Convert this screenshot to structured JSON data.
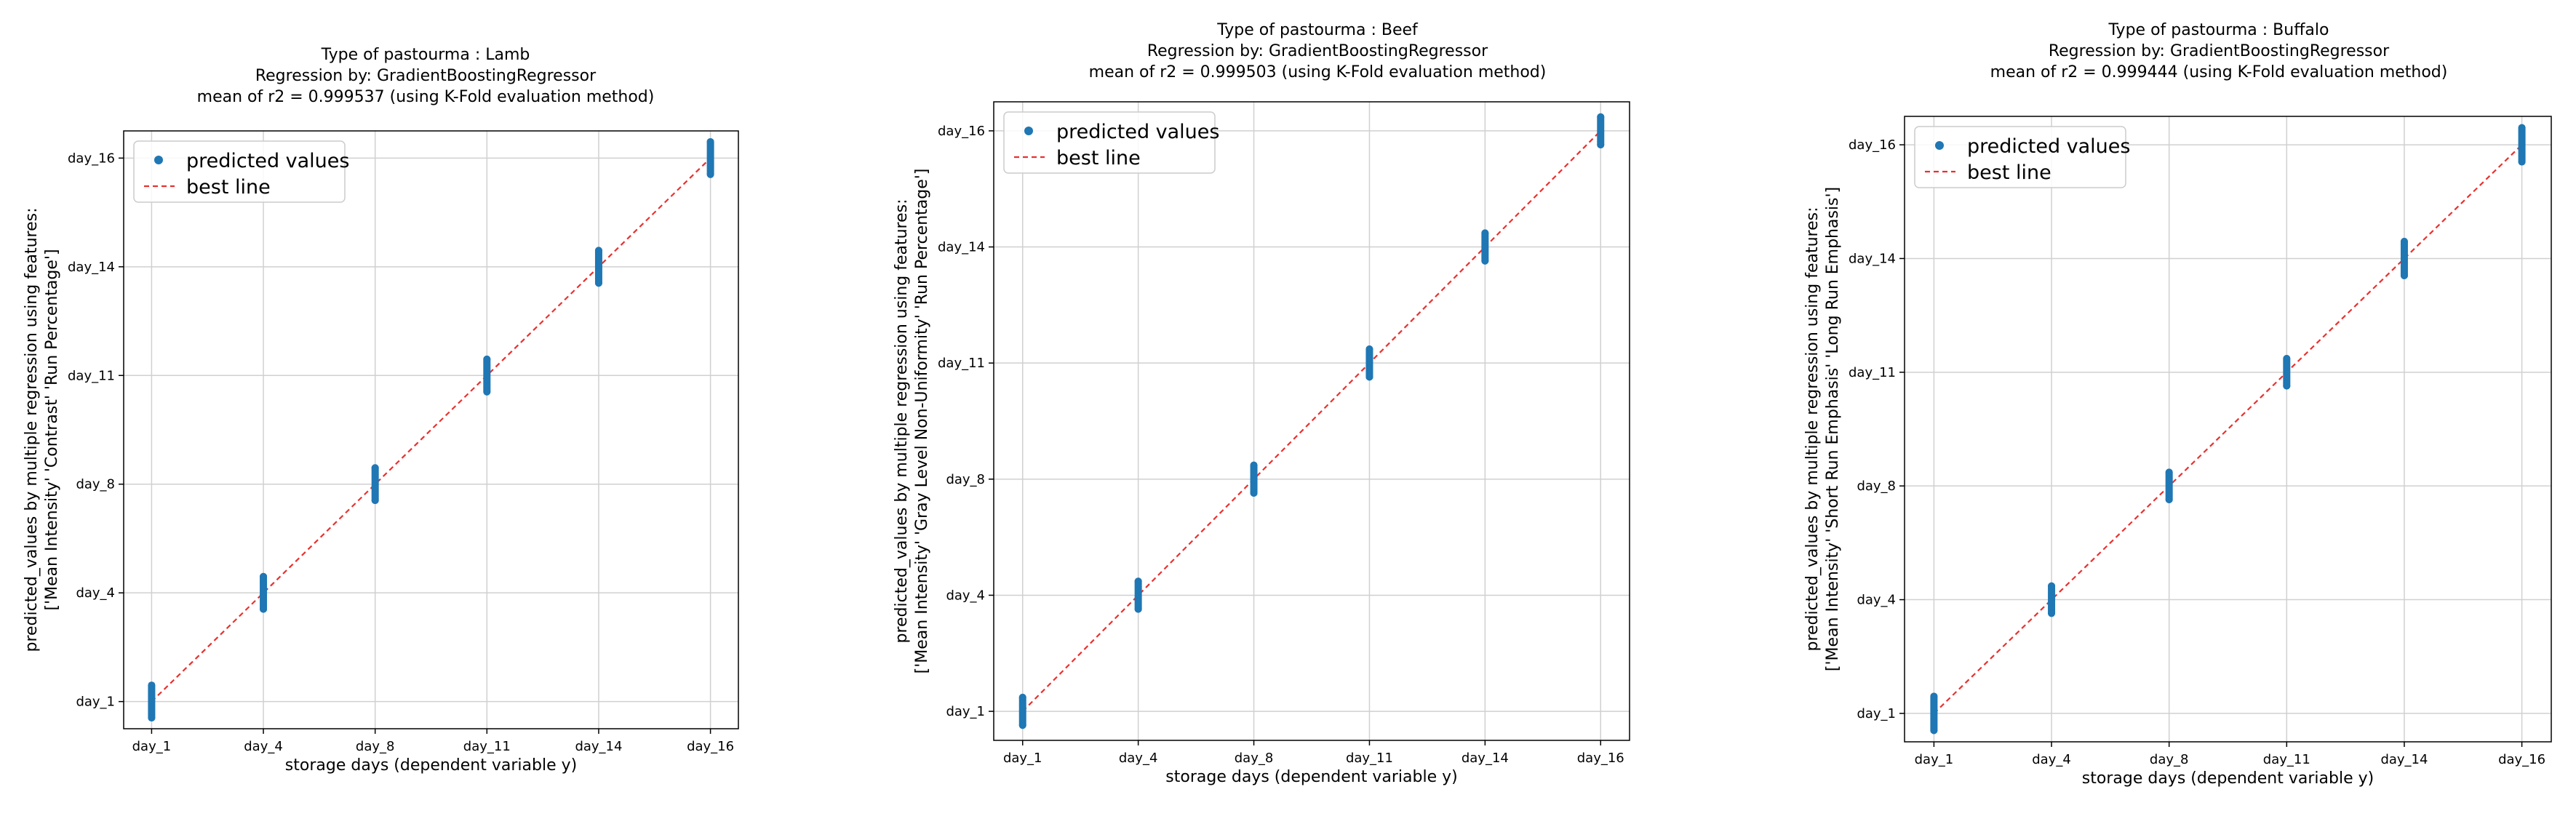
{
  "chart_data": [
    {
      "type": "scatter",
      "title_lines": [
        "Type of pastourma : Lamb",
        "Regression by: GradientBoostingRegressor",
        "mean of r2 = 0.999537 (using K-Fold evaluation method)"
      ],
      "xlabel": "storage days (dependent variable y)",
      "ylabel_lines": [
        "predicted_values by multiple regression using features:",
        "['Mean Intensity' 'Contrast' 'Run Percentage']"
      ],
      "categories": [
        "day_1",
        "day_4",
        "day_8",
        "day_11",
        "day_14",
        "day_16"
      ],
      "grid": true,
      "legend_position": "upper-left",
      "series": [
        {
          "name": "predicted values",
          "kind": "points",
          "color": "#1f77b4",
          "points": [
            [
              0,
              -0.15
            ],
            [
              0,
              0.15
            ],
            [
              1,
              -0.15
            ],
            [
              1,
              0.15
            ],
            [
              2,
              -0.15
            ],
            [
              2,
              0.15
            ],
            [
              3,
              -0.15
            ],
            [
              3,
              0.15
            ],
            [
              4,
              -0.15
            ],
            [
              4,
              0.15
            ],
            [
              5,
              -0.15
            ],
            [
              5,
              0.15
            ]
          ]
        },
        {
          "name": "best line",
          "kind": "line",
          "color": "#e8312f",
          "style": "dashed",
          "points": [
            [
              0,
              0
            ],
            [
              5,
              5
            ]
          ]
        }
      ]
    },
    {
      "type": "scatter",
      "title_lines": [
        "Type of pastourma : Beef",
        "Regression by: GradientBoostingRegressor",
        "mean of r2 = 0.999503 (using K-Fold evaluation method)"
      ],
      "xlabel": "storage days (dependent variable y)",
      "ylabel_lines": [
        "predicted_values by multiple regression using features:",
        "['Mean Intensity' 'Gray Level Non-Uniformity' 'Run Percentage']"
      ],
      "categories": [
        "day_1",
        "day_4",
        "day_8",
        "day_11",
        "day_14",
        "day_16"
      ],
      "grid": true,
      "legend_position": "upper-left",
      "series": [
        {
          "name": "predicted values",
          "kind": "points",
          "color": "#1f77b4",
          "points": [
            [
              0,
              -0.12
            ],
            [
              0,
              0.12
            ],
            [
              1,
              -0.12
            ],
            [
              1,
              0.12
            ],
            [
              2,
              -0.12
            ],
            [
              2,
              0.12
            ],
            [
              3,
              -0.12
            ],
            [
              3,
              0.12
            ],
            [
              4,
              -0.12
            ],
            [
              4,
              0.12
            ],
            [
              5,
              -0.12
            ],
            [
              5,
              0.12
            ]
          ]
        },
        {
          "name": "best line",
          "kind": "line",
          "color": "#e8312f",
          "style": "dashed",
          "points": [
            [
              0,
              0
            ],
            [
              5,
              5
            ]
          ]
        }
      ]
    },
    {
      "type": "scatter",
      "title_lines": [
        "Type of pastourma : Buffalo",
        "Regression by: GradientBoostingRegressor",
        "mean of r2 = 0.999444 (using K-Fold evaluation method)"
      ],
      "xlabel": "storage days (dependent variable y)",
      "ylabel_lines": [
        "predicted_values by multiple regression using features:",
        "['Mean Intensity' 'Short Run Emphasis' 'Long Run Emphasis']"
      ],
      "categories": [
        "day_1",
        "day_4",
        "day_8",
        "day_11",
        "day_14",
        "day_16"
      ],
      "grid": true,
      "legend_position": "upper-left",
      "series": [
        {
          "name": "predicted values",
          "kind": "points",
          "color": "#1f77b4",
          "points": [
            [
              0,
              -0.15
            ],
            [
              0,
              0.15
            ],
            [
              1,
              -0.12
            ],
            [
              1,
              0.12
            ],
            [
              2,
              -0.12
            ],
            [
              2,
              0.12
            ],
            [
              3,
              -0.12
            ],
            [
              3,
              0.12
            ],
            [
              4,
              -0.15
            ],
            [
              4,
              0.15
            ],
            [
              5,
              -0.15
            ],
            [
              5,
              0.15
            ]
          ]
        },
        {
          "name": "best line",
          "kind": "line",
          "color": "#e8312f",
          "style": "dashed",
          "points": [
            [
              0,
              0
            ],
            [
              5,
              5
            ]
          ]
        }
      ]
    }
  ]
}
